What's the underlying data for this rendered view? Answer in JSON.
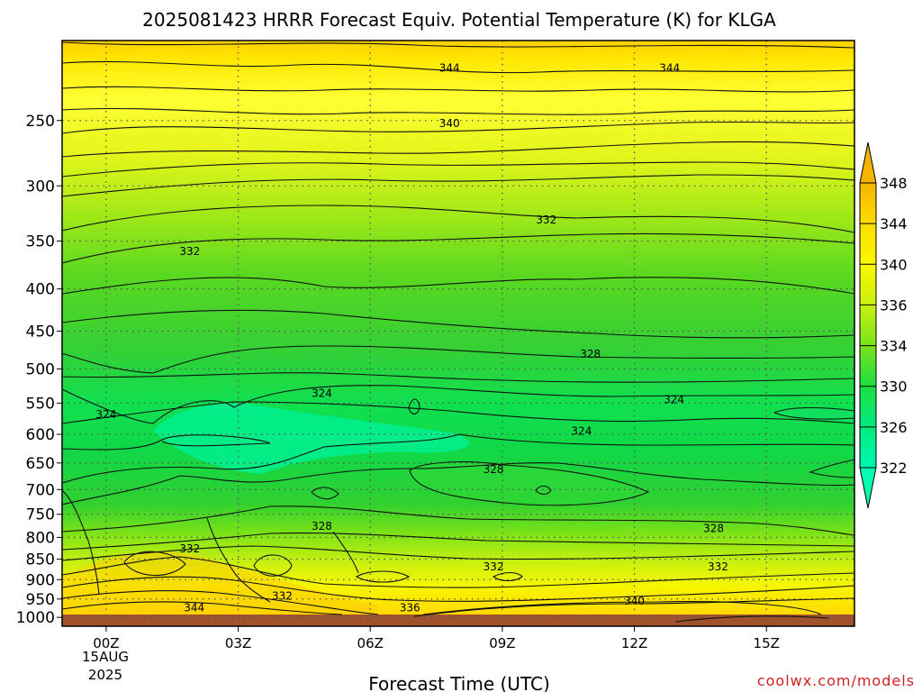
{
  "title": "2025081423 HRRR Forecast Equiv. Potential Temperature (K) for KLGA",
  "credit": "coolwx.com/models",
  "chart_data": {
    "type": "heatmap",
    "title": "2025081423 HRRR Forecast Equiv. Potential Temperature (K) for KLGA",
    "xlabel": "Forecast Time (UTC)",
    "ylabel": "",
    "x_ticks": [
      "00Z",
      "03Z",
      "06Z",
      "09Z",
      "12Z",
      "15Z"
    ],
    "x_tick_hours": [
      0,
      3,
      6,
      9,
      12,
      15
    ],
    "x_date_label": [
      "15AUG",
      "2025"
    ],
    "xlim_hours": [
      -1,
      17
    ],
    "y_ticks": [
      250,
      300,
      350,
      400,
      450,
      500,
      550,
      600,
      650,
      700,
      750,
      800,
      850,
      900,
      950,
      1000
    ],
    "y_axis": "pressure (hPa), log scale, decreasing upward",
    "ylim": [
      1025,
      200
    ],
    "grid": true,
    "colorbar": {
      "labels": [
        322,
        326,
        330,
        334,
        336,
        340,
        344,
        348
      ],
      "colors": [
        "#00ffaf",
        "#00f07d",
        "#30e030",
        "#80e60a",
        "#b8f010",
        "#f0f000",
        "#ffd700",
        "#f0b000"
      ],
      "extend": "both"
    },
    "contour_labels": [
      {
        "value": "344",
        "hour": 7.8,
        "p": 216
      },
      {
        "value": "344",
        "hour": 12.8,
        "p": 216
      },
      {
        "value": "340",
        "hour": 7.8,
        "p": 252
      },
      {
        "value": "332",
        "hour": 10.0,
        "p": 330
      },
      {
        "value": "332",
        "hour": 1.9,
        "p": 360
      },
      {
        "value": "328",
        "hour": 11.0,
        "p": 480
      },
      {
        "value": "324",
        "hour": 4.9,
        "p": 535
      },
      {
        "value": "324",
        "hour": 12.9,
        "p": 545
      },
      {
        "value": "324",
        "hour": -0.0,
        "p": 568
      },
      {
        "value": "324",
        "hour": 10.8,
        "p": 595
      },
      {
        "value": "328",
        "hour": 8.8,
        "p": 662
      },
      {
        "value": "328",
        "hour": 4.9,
        "p": 775
      },
      {
        "value": "328",
        "hour": 13.8,
        "p": 780
      },
      {
        "value": "332",
        "hour": 1.9,
        "p": 826
      },
      {
        "value": "332",
        "hour": 8.8,
        "p": 868
      },
      {
        "value": "332",
        "hour": 13.9,
        "p": 868
      },
      {
        "value": "332",
        "hour": 4.0,
        "p": 942
      },
      {
        "value": "340",
        "hour": 12.0,
        "p": 955
      },
      {
        "value": "336",
        "hour": 6.9,
        "p": 973
      },
      {
        "value": "344",
        "hour": 2.0,
        "p": 973
      }
    ]
  }
}
